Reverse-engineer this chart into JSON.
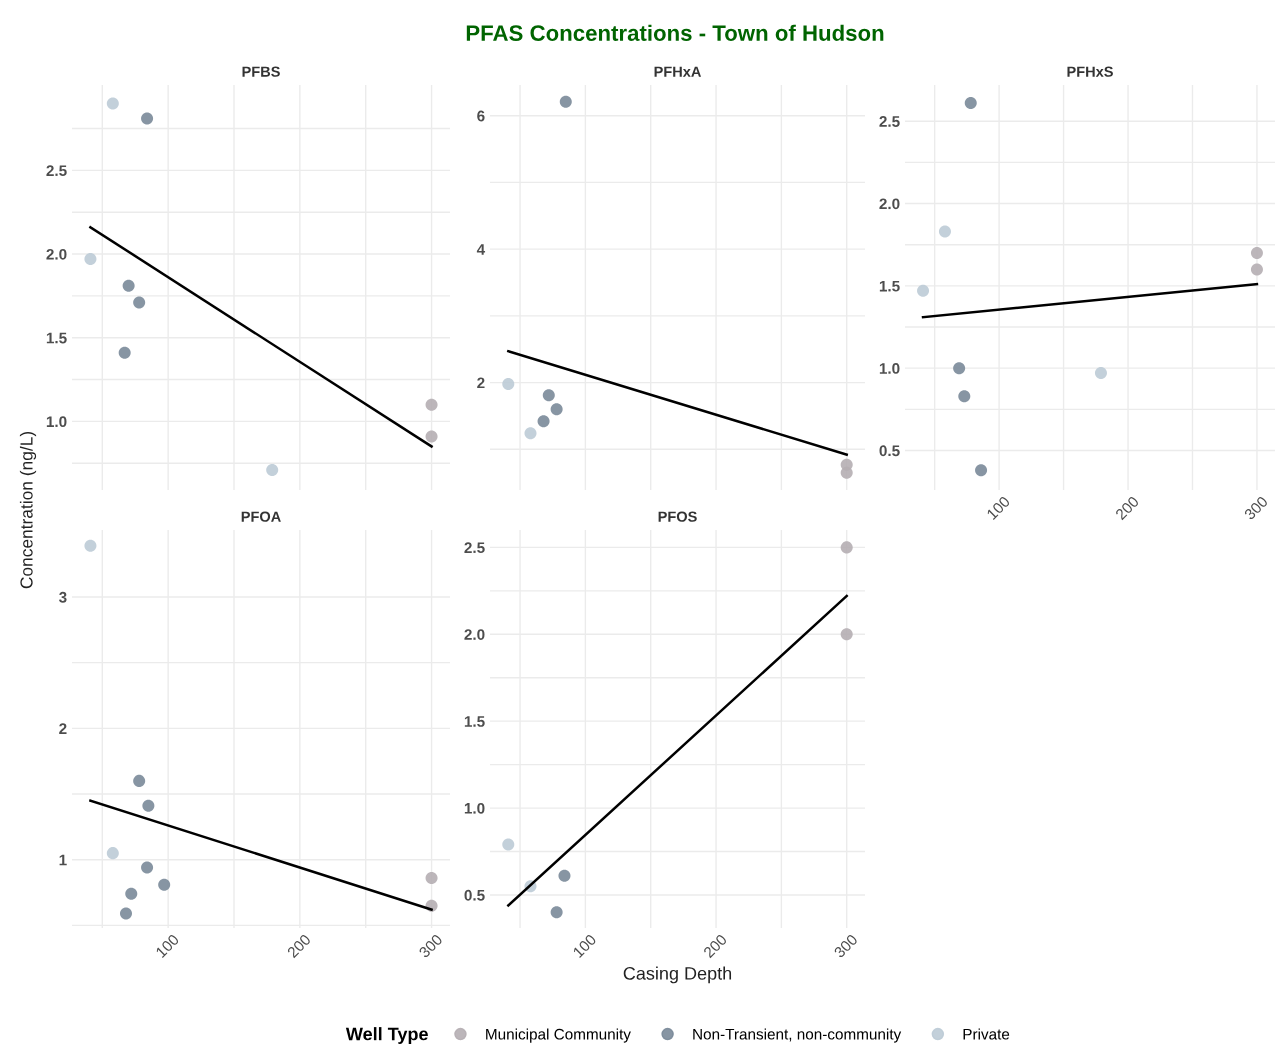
{
  "chart_data": [
    {
      "type": "scatter",
      "title": "PFBS",
      "ylabel": "Concentration (ng/L)",
      "annotations": [
        "PFAS Concentrations - Town of Hudson"
      ],
      "legend": "bottom",
      "legend_title": "Well Type",
      "grid": true,
      "marker": "circle",
      "tick_labels": "y",
      "xlim": [
        27,
        314
      ],
      "xticks": [
        {
          "value": 50,
          "label": null
        },
        100,
        {
          "value": 150,
          "label": null
        },
        200,
        {
          "value": 250,
          "label": null
        },
        300
      ],
      "ylim": [
        0.59,
        3.01
      ],
      "yticks": [
        {
          "value": 0.75,
          "label": null
        },
        {
          "value": 1,
          "label": "1.0"
        },
        {
          "value": 1.25,
          "label": null
        },
        1.5,
        {
          "value": 1.75,
          "label": null
        },
        {
          "value": 2,
          "label": "2.0"
        },
        {
          "value": 2.25,
          "label": null
        },
        2.5,
        {
          "value": 2.75,
          "label": null
        }
      ],
      "series": [
        {
          "name": "Municipal Community",
          "color": "#b5aeb3",
          "x": [
            300,
            300
          ],
          "values": [
            1.1,
            0.91
          ]
        },
        {
          "name": "Non-Transient, non-community",
          "color": "#7a8a99",
          "x": [
            84,
            70,
            78,
            67
          ],
          "values": [
            2.81,
            1.81,
            1.71,
            1.41
          ]
        },
        {
          "name": "Private",
          "color": "#bccbd6",
          "x": [
            41,
            58,
            179
          ],
          "values": [
            1.97,
            2.9,
            0.71
          ]
        },
        {
          "type": "line",
          "marker": "none",
          "color": "#000000",
          "x": [
            41,
            300
          ],
          "values": [
            2.16,
            0.85
          ]
        }
      ]
    },
    {
      "type": "scatter",
      "title": "PFHxA",
      "grid": true,
      "marker": "circle",
      "tick_labels": "y",
      "xlim": [
        27,
        314
      ],
      "xticks": [
        {
          "value": 50,
          "label": null
        },
        100,
        {
          "value": 150,
          "label": null
        },
        200,
        {
          "value": 250,
          "label": null
        },
        300
      ],
      "ylim": [
        0.39,
        6.46
      ],
      "yticks": [
        {
          "value": 1,
          "label": null
        },
        2,
        {
          "value": 3,
          "label": null
        },
        4,
        {
          "value": 5,
          "label": null
        },
        6
      ],
      "series": [
        {
          "color": "#b5aeb3",
          "x": [
            300,
            300
          ],
          "values": [
            0.77,
            0.65
          ]
        },
        {
          "color": "#7a8a99",
          "x": [
            85,
            72,
            78,
            68
          ],
          "values": [
            6.21,
            1.81,
            1.6,
            1.42
          ]
        },
        {
          "color": "#bccbd6",
          "x": [
            41,
            58
          ],
          "values": [
            1.98,
            1.24
          ]
        },
        {
          "type": "line",
          "marker": "none",
          "color": "#000000",
          "x": [
            41,
            300
          ],
          "values": [
            2.47,
            0.92
          ]
        }
      ]
    },
    {
      "type": "scatter",
      "title": "PFHxS",
      "grid": true,
      "marker": "circle",
      "xlim": [
        27,
        314
      ],
      "xticks": [
        {
          "value": 50,
          "label": null
        },
        100,
        {
          "value": 150,
          "label": null
        },
        200,
        {
          "value": 250,
          "label": null
        },
        300
      ],
      "ylim": [
        0.26,
        2.72
      ],
      "yticks": [
        0.5,
        {
          "value": 0.75,
          "label": null
        },
        {
          "value": 1,
          "label": "1.0"
        },
        {
          "value": 1.25,
          "label": null
        },
        1.5,
        {
          "value": 1.75,
          "label": null
        },
        {
          "value": 2,
          "label": "2.0"
        },
        {
          "value": 2.25,
          "label": null
        },
        2.5
      ],
      "series": [
        {
          "color": "#b5aeb3",
          "x": [
            300,
            300
          ],
          "values": [
            1.7,
            1.6
          ]
        },
        {
          "color": "#7a8a99",
          "x": [
            78,
            69,
            73,
            86
          ],
          "values": [
            2.61,
            1.0,
            0.83,
            0.38
          ]
        },
        {
          "color": "#bccbd6",
          "x": [
            58,
            41,
            179
          ],
          "values": [
            1.83,
            1.47,
            0.97
          ]
        },
        {
          "type": "line",
          "marker": "none",
          "color": "#000000",
          "x": [
            41,
            300
          ],
          "values": [
            1.31,
            1.51
          ]
        }
      ]
    },
    {
      "type": "scatter",
      "title": "PFOA",
      "grid": true,
      "marker": "circle",
      "xlim": [
        27,
        314
      ],
      "xticks": [
        {
          "value": 50,
          "label": null
        },
        100,
        {
          "value": 150,
          "label": null
        },
        200,
        {
          "value": 250,
          "label": null
        },
        300
      ],
      "ylim": [
        0.48,
        3.51
      ],
      "yticks": [
        {
          "value": 0.5,
          "label": null
        },
        1,
        {
          "value": 1.5,
          "label": null
        },
        2,
        {
          "value": 2.5,
          "label": null
        },
        3
      ],
      "series": [
        {
          "color": "#b5aeb3",
          "x": [
            300,
            300
          ],
          "values": [
            0.86,
            0.65
          ]
        },
        {
          "color": "#7a8a99",
          "x": [
            78,
            85,
            84,
            97,
            72,
            68
          ],
          "values": [
            1.6,
            1.41,
            0.94,
            0.81,
            0.74,
            0.59
          ]
        },
        {
          "color": "#bccbd6",
          "x": [
            41,
            58
          ],
          "values": [
            3.39,
            1.05
          ]
        },
        {
          "type": "line",
          "marker": "none",
          "color": "#000000",
          "x": [
            41,
            300
          ],
          "values": [
            1.45,
            0.62
          ]
        }
      ]
    },
    {
      "type": "scatter",
      "title": "PFOS",
      "xlabel": "Casing Depth",
      "grid": true,
      "marker": "circle",
      "xlim": [
        27,
        314
      ],
      "xticks": [
        {
          "value": 50,
          "label": null
        },
        100,
        {
          "value": 150,
          "label": null
        },
        200,
        {
          "value": 250,
          "label": null
        },
        300
      ],
      "ylim": [
        0.31,
        2.6
      ],
      "yticks": [
        0.5,
        {
          "value": 0.75,
          "label": null
        },
        {
          "value": 1,
          "label": "1.0"
        },
        {
          "value": 1.25,
          "label": null
        },
        1.5,
        {
          "value": 1.75,
          "label": null
        },
        {
          "value": 2,
          "label": "2.0"
        },
        {
          "value": 2.25,
          "label": null
        },
        2.5
      ],
      "series": [
        {
          "color": "#b5aeb3",
          "x": [
            300,
            300
          ],
          "values": [
            2.5,
            2.0
          ]
        },
        {
          "color": "#7a8a99",
          "x": [
            84,
            78
          ],
          "values": [
            0.61,
            0.4
          ]
        },
        {
          "color": "#bccbd6",
          "x": [
            41,
            58
          ],
          "values": [
            0.79,
            0.55
          ]
        },
        {
          "type": "line",
          "marker": "none",
          "color": "#000000",
          "x": [
            41,
            300
          ],
          "values": [
            0.44,
            2.22
          ]
        }
      ]
    }
  ]
}
